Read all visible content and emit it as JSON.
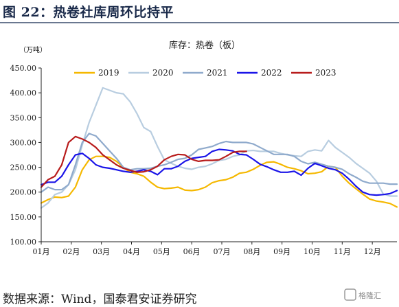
{
  "figure_title": "图 22：热卷社库周环比持平",
  "source_note": "数据来源：Wind，国泰君安证券研究",
  "watermark_text": "格隆汇",
  "chart_data": {
    "type": "line",
    "title": "库存：热卷（板）",
    "ylabel": "（万吨）",
    "xlabel": "",
    "ylim": [
      100,
      450
    ],
    "yticks": [
      100,
      150,
      200,
      250,
      300,
      350,
      400,
      450
    ],
    "ytick_labels": [
      "100.00",
      "150.00",
      "200.00",
      "250.00",
      "300.00",
      "350.00",
      "400.00",
      "450.00"
    ],
    "xlim": [
      1,
      53
    ],
    "xtick_positions": [
      1,
      5.4,
      9.8,
      14.2,
      18.6,
      23,
      27.4,
      31.8,
      36.2,
      40.6,
      45,
      49.4
    ],
    "categories": [
      "01月",
      "02月",
      "03月",
      "04月",
      "05月",
      "06月",
      "07月",
      "08月",
      "09月",
      "10月",
      "11月",
      "12月"
    ],
    "grid": false,
    "legend_position": "top-center",
    "series": [
      {
        "name": "2019",
        "color": "#f5b800",
        "x": [
          1,
          2,
          3,
          4,
          5,
          6,
          7,
          8,
          9,
          10,
          11,
          12,
          13,
          14,
          15,
          16,
          17,
          18,
          19,
          20,
          21,
          22,
          23,
          24,
          25,
          26,
          27,
          28,
          29,
          30,
          31,
          32,
          33,
          34,
          35,
          36,
          37,
          38,
          39,
          40,
          41,
          42,
          43,
          44,
          45,
          46,
          47,
          48,
          49,
          50,
          51,
          52,
          53
        ],
        "values": [
          178,
          185,
          190,
          189,
          192,
          210,
          245,
          265,
          272,
          272,
          270,
          262,
          250,
          240,
          237,
          232,
          220,
          210,
          207,
          208,
          210,
          204,
          203,
          205,
          210,
          219,
          223,
          225,
          230,
          238,
          240,
          246,
          254,
          260,
          261,
          256,
          250,
          247,
          243,
          237,
          238,
          241,
          252,
          250,
          232,
          218,
          207,
          196,
          186,
          182,
          180,
          177,
          170
        ]
      },
      {
        "name": "2020",
        "color": "#b8cde0",
        "x": [
          1,
          2,
          3,
          4,
          5,
          6,
          7,
          8,
          9,
          10,
          11,
          12,
          13,
          14,
          15,
          16,
          17,
          18,
          19,
          20,
          21,
          22,
          23,
          24,
          25,
          26,
          27,
          28,
          29,
          30,
          31,
          32,
          33,
          34,
          35,
          36,
          37,
          38,
          39,
          40,
          41,
          42,
          43,
          44,
          45,
          46,
          47,
          48,
          49,
          50,
          51,
          52,
          53
        ],
        "values": [
          168,
          178,
          195,
          200,
          215,
          245,
          295,
          340,
          375,
          410,
          405,
          400,
          398,
          382,
          358,
          330,
          322,
          292,
          265,
          258,
          252,
          248,
          246,
          250,
          252,
          257,
          264,
          266,
          272,
          275,
          283,
          284,
          282,
          282,
          282,
          278,
          275,
          273,
          272,
          282,
          285,
          283,
          304,
          290,
          280,
          270,
          258,
          248,
          238,
          222,
          196,
          192,
          192
        ]
      },
      {
        "name": "2021",
        "color": "#8faacc",
        "x": [
          1,
          2,
          3,
          4,
          5,
          6,
          7,
          8,
          9,
          10,
          11,
          12,
          13,
          14,
          15,
          16,
          17,
          18,
          19,
          20,
          21,
          22,
          23,
          24,
          25,
          26,
          27,
          28,
          29,
          30,
          31,
          32,
          33,
          34,
          35,
          36,
          37,
          38,
          39,
          40,
          41,
          42,
          43,
          44,
          45,
          46,
          47,
          48,
          49,
          50,
          51,
          52,
          53
        ],
        "values": [
          200,
          210,
          205,
          205,
          215,
          255,
          300,
          318,
          313,
          298,
          283,
          268,
          250,
          245,
          247,
          247,
          248,
          252,
          255,
          260,
          266,
          268,
          275,
          286,
          289,
          292,
          298,
          302,
          300,
          300,
          300,
          297,
          290,
          283,
          276,
          276,
          276,
          272,
          262,
          257,
          260,
          256,
          252,
          250,
          246,
          237,
          230,
          222,
          218,
          218,
          218,
          216,
          216
        ]
      },
      {
        "name": "2022",
        "color": "#1a14e8",
        "x": [
          1,
          2,
          3,
          4,
          5,
          6,
          7,
          8,
          9,
          10,
          11,
          12,
          13,
          14,
          15,
          16,
          17,
          18,
          19,
          20,
          21,
          22,
          23,
          24,
          25,
          26,
          27,
          28,
          29,
          30,
          31,
          32,
          33,
          34,
          35,
          36,
          37,
          38,
          39,
          40,
          41,
          42,
          43,
          44,
          45,
          46,
          47,
          48,
          49,
          50,
          51,
          52,
          53
        ],
        "values": [
          215,
          220,
          220,
          232,
          255,
          275,
          278,
          268,
          255,
          250,
          248,
          245,
          242,
          240,
          242,
          245,
          242,
          235,
          247,
          247,
          252,
          262,
          268,
          270,
          272,
          282,
          286,
          285,
          283,
          276,
          275,
          266,
          256,
          251,
          245,
          240,
          240,
          242,
          234,
          248,
          258,
          253,
          248,
          245,
          238,
          226,
          212,
          200,
          195,
          194,
          195,
          197,
          203
        ]
      },
      {
        "name": "2023",
        "color": "#b81c1c",
        "x": [
          1,
          2,
          3,
          4,
          5,
          6,
          7,
          8,
          9,
          10,
          11,
          12,
          13,
          14,
          15,
          16,
          17,
          18,
          19,
          20,
          21,
          22,
          23,
          24,
          25,
          26,
          27,
          28,
          29,
          30,
          31
        ],
        "values": [
          210,
          225,
          232,
          255,
          300,
          312,
          307,
          300,
          290,
          275,
          265,
          255,
          248,
          244,
          240,
          241,
          245,
          252,
          265,
          272,
          276,
          275,
          266,
          262,
          264,
          264,
          265,
          272,
          280,
          282,
          282
        ]
      }
    ]
  }
}
